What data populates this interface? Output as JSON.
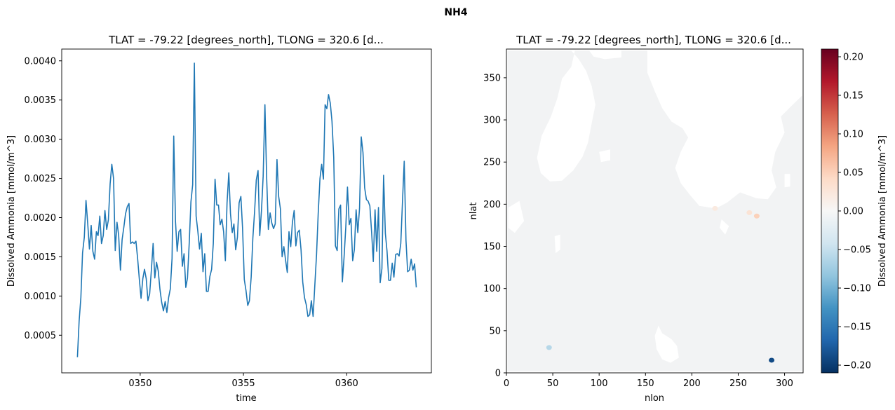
{
  "suptitle": "NH4",
  "chart_data": [
    {
      "type": "line",
      "title": "TLAT = -79.22 [degrees_north], TLONG = 320.6 [d...",
      "xlabel": "time",
      "ylabel": "Dissolved Ammonia [mmol/m^3]",
      "xlim": [
        346.2,
        364.1
      ],
      "ylim": [
        2e-05,
        0.00415
      ],
      "xticks": [
        350,
        355,
        360
      ],
      "xtick_labels": [
        "0350",
        "0355",
        "0360"
      ],
      "yticks": [
        0.0005,
        0.001,
        0.0015,
        0.002,
        0.0025,
        0.003,
        0.0035,
        0.004
      ],
      "ytick_labels": [
        "0.0005",
        "0.0010",
        "0.0015",
        "0.0020",
        "0.0025",
        "0.0030",
        "0.0035",
        "0.0040"
      ],
      "line_color": "#1f77b4",
      "series": [
        {
          "x_start": 346.96,
          "x_step": 0.0833,
          "values": [
            0.00022,
            0.00068,
            0.00098,
            0.00155,
            0.00175,
            0.00222,
            0.00192,
            0.0016,
            0.0019,
            0.00157,
            0.00147,
            0.00182,
            0.00177,
            0.00202,
            0.00167,
            0.00177,
            0.00209,
            0.00185,
            0.00197,
            0.00243,
            0.00268,
            0.0025,
            0.00158,
            0.00194,
            0.00177,
            0.00133,
            0.00172,
            0.00188,
            0.00205,
            0.00214,
            0.00218,
            0.00167,
            0.00169,
            0.00167,
            0.0017,
            0.00148,
            0.00121,
            0.00097,
            0.00122,
            0.00134,
            0.00122,
            0.00094,
            0.00103,
            0.00133,
            0.00167,
            0.00123,
            0.00143,
            0.00132,
            0.00108,
            0.00092,
            0.00081,
            0.00093,
            0.00079,
            0.00098,
            0.00109,
            0.00148,
            0.00304,
            0.00195,
            0.00157,
            0.00182,
            0.00185,
            0.00138,
            0.00154,
            0.00111,
            0.00123,
            0.00168,
            0.0022,
            0.00242,
            0.00397,
            0.00202,
            0.00183,
            0.0016,
            0.0018,
            0.00131,
            0.00154,
            0.00106,
            0.00106,
            0.00125,
            0.00134,
            0.00167,
            0.00249,
            0.00216,
            0.00216,
            0.00191,
            0.00198,
            0.00182,
            0.00145,
            0.00219,
            0.00257,
            0.00205,
            0.00181,
            0.00192,
            0.00159,
            0.00175,
            0.00219,
            0.00227,
            0.00187,
            0.00121,
            0.00107,
            0.00088,
            0.00094,
            0.00124,
            0.00174,
            0.00208,
            0.00248,
            0.0026,
            0.00177,
            0.00209,
            0.00253,
            0.00344,
            0.00253,
            0.00185,
            0.00206,
            0.00193,
            0.00186,
            0.00192,
            0.00274,
            0.00227,
            0.00211,
            0.0015,
            0.00163,
            0.00146,
            0.0013,
            0.00182,
            0.00163,
            0.00194,
            0.00209,
            0.00164,
            0.00181,
            0.00184,
            0.00159,
            0.00118,
            0.00098,
            0.00089,
            0.00074,
            0.00076,
            0.00094,
            0.00074,
            0.00113,
            0.00153,
            0.00206,
            0.0025,
            0.00268,
            0.00249,
            0.00344,
            0.00339,
            0.00357,
            0.00346,
            0.00323,
            0.00277,
            0.00164,
            0.00158,
            0.00211,
            0.00216,
            0.00118,
            0.00149,
            0.00188,
            0.00239,
            0.00191,
            0.00199,
            0.00145,
            0.00159,
            0.0021,
            0.00181,
            0.00212,
            0.00303,
            0.00283,
            0.00238,
            0.00223,
            0.00221,
            0.00215,
            0.00183,
            0.00144,
            0.0021,
            0.00157,
            0.00213,
            0.00117,
            0.00135,
            0.00254,
            0.0018,
            0.00157,
            0.0012,
            0.0012,
            0.00142,
            0.00124,
            0.00153,
            0.00154,
            0.00151,
            0.00167,
            0.00222,
            0.00272,
            0.00171,
            0.00131,
            0.00133,
            0.00147,
            0.00133,
            0.00141,
            0.00111
          ]
        }
      ]
    },
    {
      "type": "heatmap",
      "title": "TLAT = -79.22 [degrees_north], TLONG = 320.6 [d...",
      "xlabel": "nlon",
      "ylabel": "nlat",
      "xlim": [
        0,
        320
      ],
      "ylim": [
        0,
        384
      ],
      "xticks": [
        0,
        50,
        100,
        150,
        200,
        250,
        300
      ],
      "xtick_labels": [
        "0",
        "50",
        "100",
        "150",
        "200",
        "250",
        "300"
      ],
      "yticks": [
        0,
        50,
        100,
        150,
        200,
        250,
        300,
        350
      ],
      "ytick_labels": [
        "0",
        "50",
        "100",
        "150",
        "200",
        "250",
        "300",
        "350"
      ],
      "colormap": "RdBu_r",
      "vmin": -0.21,
      "vmax": 0.21,
      "colorbar": {
        "label": "Dissolved Ammonia [mmol/m^3]",
        "ticks": [
          -0.2,
          -0.15,
          -0.1,
          -0.05,
          0.0,
          0.05,
          0.1,
          0.15,
          0.2
        ],
        "tick_labels": [
          "−0.20",
          "−0.15",
          "−0.10",
          "−0.05",
          "0.00",
          "0.05",
          "0.10",
          "0.15",
          "0.20"
        ]
      },
      "field_background": "#f2f3f4",
      "land_color": "#ffffff",
      "anomalies": [
        {
          "nlon": 286,
          "nlat": 15,
          "value": -0.19
        },
        {
          "nlon": 46,
          "nlat": 30,
          "value": -0.06
        },
        {
          "nlon": 262,
          "nlat": 190,
          "value": 0.03
        },
        {
          "nlon": 270,
          "nlat": 186,
          "value": 0.05
        },
        {
          "nlon": 225,
          "nlat": 195,
          "value": 0.02
        }
      ]
    }
  ]
}
